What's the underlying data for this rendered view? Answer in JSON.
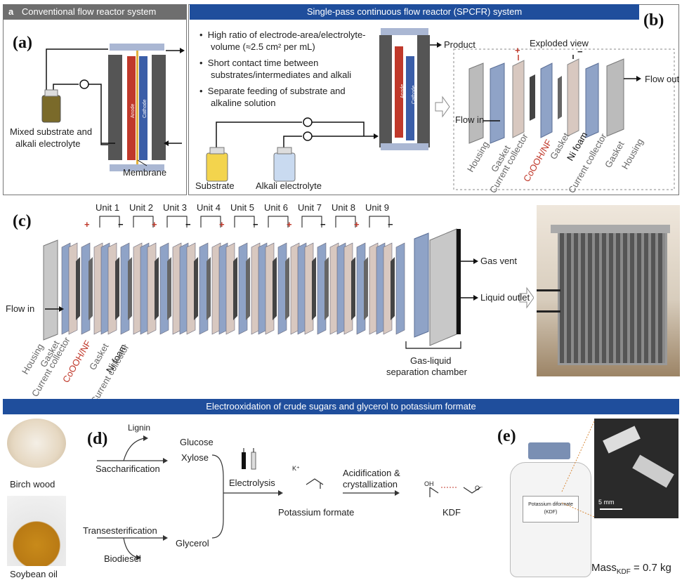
{
  "panel_a": {
    "header_letter": "a",
    "header": "Conventional flow reactor system",
    "label": "(a)",
    "mixed_line1": "Mixed substrate and",
    "mixed_line2": "alkali electrolyte",
    "membrane": "Membrane",
    "anode": "Anode",
    "cathode": "Cathode"
  },
  "panel_b": {
    "header": "Single-pass continuous flow reactor (SPCFR) system",
    "label": "(b)",
    "bullets": [
      "High ratio of electrode-area/electrolyte-",
      "volume (≈2.5 cm² per mL)",
      "Short contact time between",
      "substrates/intermediates and alkali",
      "Separate feeding of substrate and",
      "alkaline solution"
    ],
    "product": "Product",
    "substrate": "Substrate",
    "alkali": "Alkali electrolyte",
    "exploded": "Exploded view",
    "flow_in": "Flow in",
    "flow_out": "Flow out",
    "plus": "+",
    "minus": "−",
    "anode": "Anode",
    "cathode": "Cathode",
    "layers": [
      "Housing",
      "Gasket",
      "Current collector",
      "CoOOH/NF",
      "Gasket",
      "Ni foam",
      "Current collector",
      "Gasket",
      "Housing"
    ]
  },
  "panel_c": {
    "label": "(c)",
    "units": [
      "Unit 1",
      "Unit 2",
      "Unit 3",
      "Unit 4",
      "Unit 5",
      "Unit 6",
      "Unit 7",
      "Unit 8",
      "Unit 9"
    ],
    "plus": "+",
    "minus": "−",
    "flow_in": "Flow in",
    "gas_vent": "Gas vent",
    "liquid_outlet": "Liquid outlet",
    "chamber_line1": "Gas-liquid",
    "chamber_line2": "separation chamber",
    "layers": [
      "Housing",
      "Gasket",
      "Current collector",
      "CoOOH/NF",
      "Gasket",
      "Ni foam",
      "Current collector"
    ]
  },
  "panel_d": {
    "header": "Electrooxidation of crude sugars and glycerol to potassium formate",
    "label": "(d)",
    "birch": "Birch wood",
    "soybean": "Soybean oil",
    "lignin": "Lignin",
    "saccharification": "Saccharification",
    "glucose": "Glucose",
    "xylose": "Xylose",
    "transesterification": "Transesterification",
    "biodiesel": "Biodiesel",
    "glycerol": "Glycerol",
    "electrolysis": "Electrolysis",
    "potassium_formate": "Potassium formate",
    "acid_line1": "Acidification &",
    "acid_line2": "crystallization",
    "kdf": "KDF",
    "k_plus": "K⁺",
    "oh": "OH",
    "o_minus": "O⁻"
  },
  "panel_e": {
    "label": "(e)",
    "bottle_line1": "Potassium diformate",
    "bottle_line2": "(KDF)",
    "scale": "5 mm",
    "mass_prefix": "Mass",
    "mass_sub": "KDF",
    "mass_value": " = 0.7 kg"
  },
  "colors": {
    "header_gray": "#6e6e6e",
    "header_blue": "#1f4e9c",
    "anode_red": "#c0392b",
    "cathode_blue": "#3b5ea8",
    "gasket_blue": "#8fa3c7"
  }
}
